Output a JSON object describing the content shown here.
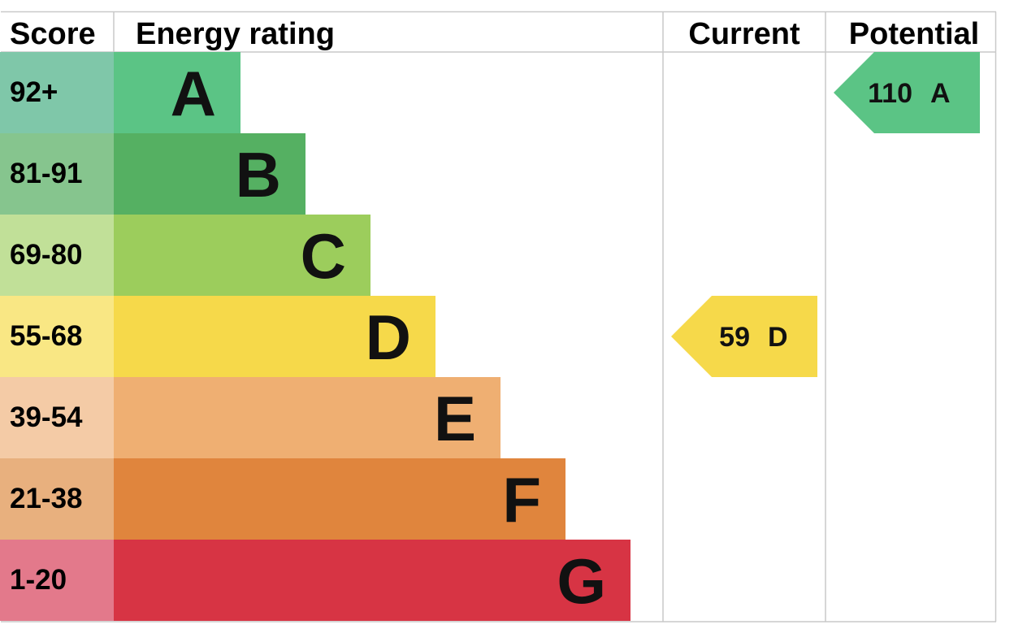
{
  "chart_data": {
    "type": "table",
    "columns": [
      "Score",
      "Energy rating",
      "Current",
      "Potential"
    ],
    "bands": [
      {
        "letter": "A",
        "range": "92+",
        "color": "#5bc485",
        "range_color": "#7fc7a9"
      },
      {
        "letter": "B",
        "range": "81-91",
        "color": "#55b062",
        "range_color": "#86c58e"
      },
      {
        "letter": "C",
        "range": "69-80",
        "color": "#9ccd5c",
        "range_color": "#c1e098"
      },
      {
        "letter": "D",
        "range": "55-68",
        "color": "#f6d94a",
        "range_color": "#f9e784"
      },
      {
        "letter": "E",
        "range": "39-54",
        "color": "#efaf72",
        "range_color": "#f4cba6"
      },
      {
        "letter": "F",
        "range": "21-38",
        "color": "#e0853d",
        "range_color": "#e8b07e"
      },
      {
        "letter": "G",
        "range": "1-20",
        "color": "#d73444",
        "range_color": "#e3798b"
      }
    ],
    "current": {
      "score": "59",
      "rating": "D",
      "color": "#f6d94a"
    },
    "potential": {
      "score": "110",
      "rating": "A",
      "color": "#5bc485"
    }
  }
}
